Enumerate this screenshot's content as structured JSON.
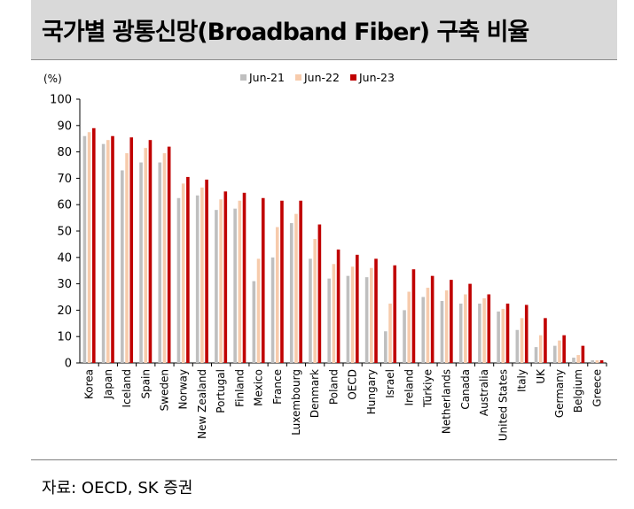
{
  "header": {
    "title": "국가별 광통신망(Broadband Fiber) 구축 비율"
  },
  "footer": {
    "source": "자료: OECD, SK 증권"
  },
  "colors": {
    "Jun-21": "#bfbfbf",
    "Jun-22": "#f7cbac",
    "Jun-23": "#c00000"
  },
  "chart_data": {
    "type": "bar",
    "title": "국가별 광통신망(Broadband Fiber) 구축 비율",
    "ylabel": "(%)",
    "xlabel": "",
    "ylim": [
      0,
      100
    ],
    "yticks": [
      0,
      10,
      20,
      30,
      40,
      50,
      60,
      70,
      80,
      90,
      100
    ],
    "grid": false,
    "legend_position": "top-center",
    "categories": [
      "Korea",
      "Japan",
      "Iceland",
      "Spain",
      "Sweden",
      "Norway",
      "New Zealand",
      "Portugal",
      "Finland",
      "Mexico",
      "France",
      "Luxembourg",
      "Denmark",
      "Poland",
      "OECD",
      "Hungary",
      "Israel",
      "Ireland",
      "Türkiye",
      "Netherlands",
      "Canada",
      "Australia",
      "United States",
      "Italy",
      "UK",
      "Germany",
      "Belgium",
      "Greece"
    ],
    "series": [
      {
        "name": "Jun-21",
        "values": [
          86,
          83,
          73,
          76,
          76,
          62.5,
          63.5,
          58,
          58.5,
          31,
          40,
          53,
          39.5,
          32,
          33,
          32.5,
          12,
          20,
          25,
          23.5,
          22.5,
          22.5,
          19.5,
          12.5,
          6,
          6.5,
          2,
          1
        ]
      },
      {
        "name": "Jun-22",
        "values": [
          87.5,
          84.5,
          79.5,
          81.5,
          79.5,
          68,
          66.5,
          62,
          61.5,
          39.5,
          51.5,
          56.5,
          47,
          37.5,
          36.5,
          36,
          22.5,
          27,
          28.5,
          27.5,
          26,
          24.5,
          20.5,
          17,
          10.5,
          8.5,
          3,
          1
        ]
      },
      {
        "name": "Jun-23",
        "values": [
          89,
          86,
          85.5,
          84.5,
          82,
          70.5,
          69.5,
          65,
          64.5,
          62.5,
          61.5,
          61.5,
          52.5,
          43,
          41,
          39.5,
          37,
          35.5,
          33,
          31.5,
          30,
          26,
          22.5,
          22,
          17,
          10.5,
          6.5,
          1
        ]
      }
    ]
  }
}
